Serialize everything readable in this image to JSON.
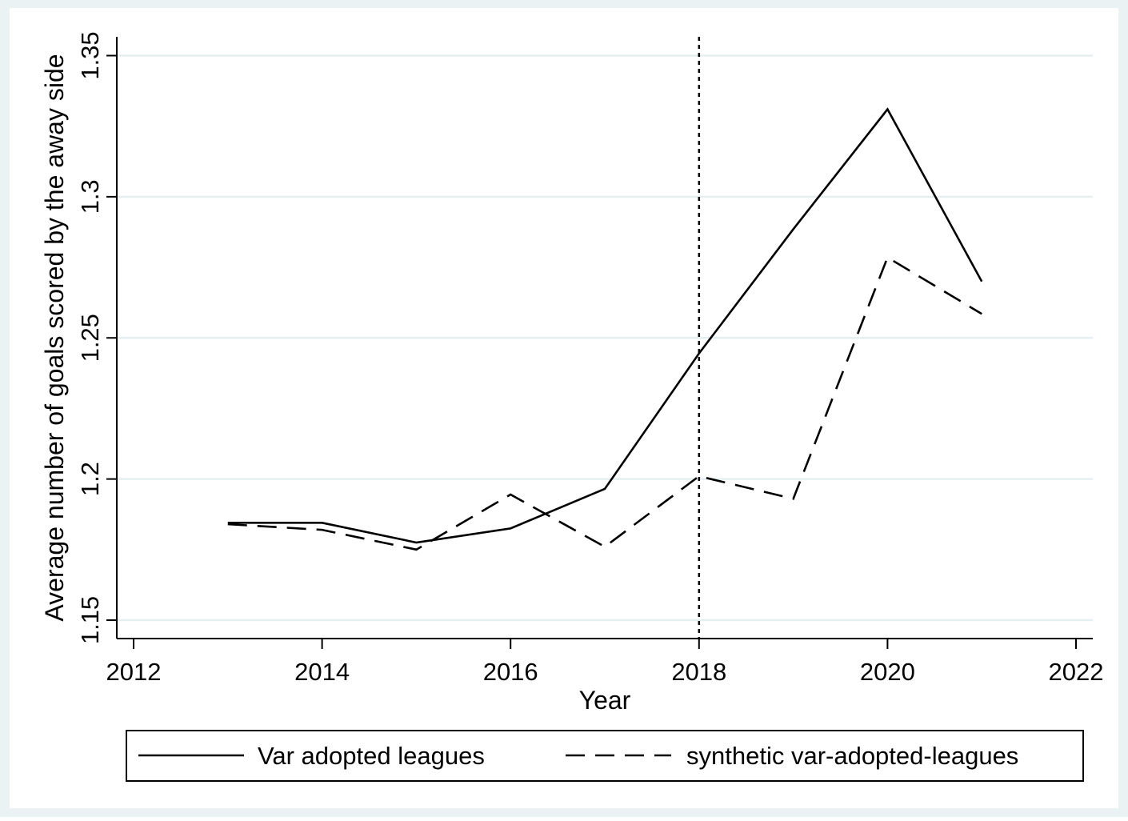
{
  "chart_data": {
    "type": "line",
    "title": "",
    "xlabel": "Year",
    "ylabel": "Average number of goals scored by the away side",
    "xlim": [
      2012,
      2022
    ],
    "ylim": [
      1.15,
      1.355
    ],
    "xticks": [
      2012,
      2014,
      2016,
      2018,
      2020,
      2022
    ],
    "yticks": [
      1.15,
      1.2,
      1.25,
      1.3,
      1.35
    ],
    "ytick_labels": [
      "1.15",
      "1.2",
      "1.25",
      "1.3",
      "1.35"
    ],
    "grid": "horizontal",
    "reference_line": {
      "x": 2018,
      "style": "dotted"
    },
    "legend": {
      "position": "bottom"
    },
    "x": [
      2013,
      2014,
      2015,
      2016,
      2017,
      2018,
      2019,
      2020,
      2021
    ],
    "series": [
      {
        "name": "Var adopted leagues",
        "style": "solid",
        "color": "#000000",
        "values": [
          1.1845,
          1.1845,
          1.1775,
          1.1825,
          1.1965,
          1.2445,
          1.2885,
          1.331,
          1.27
        ]
      },
      {
        "name": "synthetic var-adopted-leagues",
        "style": "dashed",
        "color": "#000000",
        "values": [
          1.184,
          1.182,
          1.175,
          1.1945,
          1.176,
          1.201,
          1.193,
          1.2785,
          1.2585
        ]
      }
    ],
    "colors": {
      "outer_background": "#eaf2f3",
      "plot_background": "#ffffff",
      "gridline": "#e6eff0"
    }
  }
}
